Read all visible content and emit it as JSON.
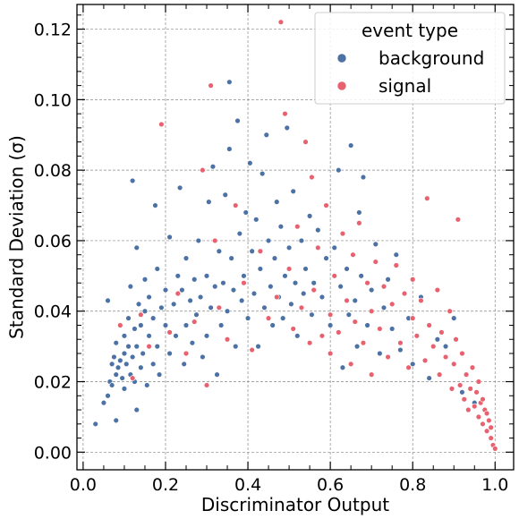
{
  "chart_data": {
    "type": "scatter",
    "xlabel": "Discriminator Output",
    "ylabel": "Standard Deviation (σ)",
    "xlim": [
      -0.015,
      1.045
    ],
    "ylim": [
      -0.005,
      0.127
    ],
    "xticks": [
      0.0,
      0.2,
      0.4,
      0.6,
      0.8,
      1.0
    ],
    "xtick_labels": [
      "0.0",
      "0.2",
      "0.4",
      "0.6",
      "0.8",
      "1.0"
    ],
    "yticks": [
      0.0,
      0.02,
      0.04,
      0.06,
      0.08,
      0.1,
      0.12
    ],
    "ytick_labels": [
      "0.00",
      "0.02",
      "0.04",
      "0.06",
      "0.08",
      "0.10",
      "0.12"
    ],
    "grid": true,
    "legend": {
      "title": "event type",
      "position": "top-right",
      "entries": [
        {
          "name": "background",
          "color": "#4c72a5"
        },
        {
          "name": "signal",
          "color": "#e8616f"
        }
      ]
    },
    "series": [
      {
        "name": "background",
        "color": "#4c72a5",
        "points": [
          [
            0.03,
            0.008
          ],
          [
            0.05,
            0.014
          ],
          [
            0.06,
            0.016
          ],
          [
            0.06,
            0.043
          ],
          [
            0.065,
            0.02
          ],
          [
            0.07,
            0.019
          ],
          [
            0.07,
            0.025
          ],
          [
            0.075,
            0.027
          ],
          [
            0.08,
            0.009
          ],
          [
            0.08,
            0.022
          ],
          [
            0.08,
            0.031
          ],
          [
            0.085,
            0.024
          ],
          [
            0.09,
            0.026
          ],
          [
            0.09,
            0.036
          ],
          [
            0.095,
            0.021
          ],
          [
            0.1,
            0.028
          ],
          [
            0.1,
            0.033
          ],
          [
            0.1,
            0.018
          ],
          [
            0.105,
            0.025
          ],
          [
            0.11,
            0.03
          ],
          [
            0.11,
            0.038
          ],
          [
            0.115,
            0.022
          ],
          [
            0.115,
            0.047
          ],
          [
            0.12,
            0.077
          ],
          [
            0.12,
            0.027
          ],
          [
            0.125,
            0.035
          ],
          [
            0.125,
            0.02
          ],
          [
            0.13,
            0.03
          ],
          [
            0.13,
            0.012
          ],
          [
            0.13,
            0.058
          ],
          [
            0.135,
            0.042
          ],
          [
            0.14,
            0.024
          ],
          [
            0.14,
            0.036
          ],
          [
            0.145,
            0.028
          ],
          [
            0.15,
            0.04
          ],
          [
            0.15,
            0.049
          ],
          [
            0.155,
            0.019
          ],
          [
            0.16,
            0.033
          ],
          [
            0.16,
            0.044
          ],
          [
            0.17,
            0.025
          ],
          [
            0.17,
            0.038
          ],
          [
            0.175,
            0.07
          ],
          [
            0.18,
            0.03
          ],
          [
            0.18,
            0.052
          ],
          [
            0.185,
            0.022
          ],
          [
            0.19,
            0.041
          ],
          [
            0.2,
            0.036
          ],
          [
            0.2,
            0.046
          ],
          [
            0.21,
            0.028
          ],
          [
            0.21,
            0.061
          ],
          [
            0.22,
            0.042
          ],
          [
            0.225,
            0.033
          ],
          [
            0.23,
            0.05
          ],
          [
            0.235,
            0.075
          ],
          [
            0.24,
            0.046
          ],
          [
            0.245,
            0.025
          ],
          [
            0.25,
            0.055
          ],
          [
            0.25,
            0.036
          ],
          [
            0.26,
            0.043
          ],
          [
            0.265,
            0.031
          ],
          [
            0.27,
            0.049
          ],
          [
            0.275,
            0.039
          ],
          [
            0.28,
            0.06
          ],
          [
            0.285,
            0.044
          ],
          [
            0.29,
            0.027
          ],
          [
            0.3,
            0.05
          ],
          [
            0.3,
            0.033
          ],
          [
            0.305,
            0.071
          ],
          [
            0.31,
            0.041
          ],
          [
            0.315,
            0.081
          ],
          [
            0.32,
            0.047
          ],
          [
            0.325,
            0.022
          ],
          [
            0.33,
            0.057
          ],
          [
            0.335,
            0.036
          ],
          [
            0.34,
            0.048
          ],
          [
            0.345,
            0.073
          ],
          [
            0.35,
            0.04
          ],
          [
            0.355,
            0.105
          ],
          [
            0.355,
            0.086
          ],
          [
            0.36,
            0.055
          ],
          [
            0.365,
            0.046
          ],
          [
            0.37,
            0.03
          ],
          [
            0.375,
            0.094
          ],
          [
            0.38,
            0.062
          ],
          [
            0.385,
            0.043
          ],
          [
            0.39,
            0.05
          ],
          [
            0.395,
            0.068
          ],
          [
            0.4,
            0.038
          ],
          [
            0.405,
            0.082
          ],
          [
            0.41,
            0.057
          ],
          [
            0.415,
            0.045
          ],
          [
            0.42,
            0.066
          ],
          [
            0.425,
            0.03
          ],
          [
            0.43,
            0.052
          ],
          [
            0.435,
            0.079
          ],
          [
            0.44,
            0.041
          ],
          [
            0.445,
            0.09
          ],
          [
            0.45,
            0.06
          ],
          [
            0.455,
            0.047
          ],
          [
            0.46,
            0.036
          ],
          [
            0.465,
            0.055
          ],
          [
            0.47,
            0.071
          ],
          [
            0.475,
            0.044
          ],
          [
            0.48,
            0.064
          ],
          [
            0.485,
            0.038
          ],
          [
            0.49,
            0.05
          ],
          [
            0.495,
            0.092
          ],
          [
            0.5,
            0.058
          ],
          [
            0.505,
            0.042
          ],
          [
            0.51,
            0.074
          ],
          [
            0.515,
            0.048
          ],
          [
            0.52,
            0.033
          ],
          [
            0.53,
            0.06
          ],
          [
            0.535,
            0.045
          ],
          [
            0.54,
            0.052
          ],
          [
            0.55,
            0.067
          ],
          [
            0.555,
            0.039
          ],
          [
            0.56,
            0.048
          ],
          [
            0.57,
            0.063
          ],
          [
            0.58,
            0.044
          ],
          [
            0.59,
            0.055
          ],
          [
            0.6,
            0.036
          ],
          [
            0.61,
            0.058
          ],
          [
            0.62,
            0.08
          ],
          [
            0.625,
            0.047
          ],
          [
            0.63,
            0.024
          ],
          [
            0.64,
            0.052
          ],
          [
            0.645,
            0.039
          ],
          [
            0.65,
            0.087
          ],
          [
            0.66,
            0.043
          ],
          [
            0.665,
            0.03
          ],
          [
            0.67,
            0.068
          ],
          [
            0.675,
            0.05
          ],
          [
            0.68,
            0.078
          ],
          [
            0.69,
            0.036
          ],
          [
            0.7,
            0.046
          ],
          [
            0.71,
            0.059
          ],
          [
            0.72,
            0.028
          ],
          [
            0.73,
            0.041
          ],
          [
            0.74,
            0.049
          ],
          [
            0.75,
            0.035
          ],
          [
            0.76,
            0.056
          ],
          [
            0.77,
            0.029
          ],
          [
            0.79,
            0.038
          ],
          [
            0.8,
            0.025
          ],
          [
            0.82,
            0.044
          ],
          [
            0.84,
            0.021
          ],
          [
            0.86,
            0.032
          ],
          [
            0.88,
            0.03
          ],
          [
            0.9,
            0.038
          ],
          [
            0.92,
            0.017
          ],
          [
            0.95,
            0.014
          ]
        ]
      },
      {
        "name": "signal",
        "color": "#e8616f",
        "points": [
          [
            0.09,
            0.036
          ],
          [
            0.12,
            0.021
          ],
          [
            0.14,
            0.039
          ],
          [
            0.16,
            0.03
          ],
          [
            0.19,
            0.093
          ],
          [
            0.21,
            0.034
          ],
          [
            0.23,
            0.045
          ],
          [
            0.25,
            0.028
          ],
          [
            0.27,
            0.037
          ],
          [
            0.29,
            0.08
          ],
          [
            0.3,
            0.019
          ],
          [
            0.31,
            0.104
          ],
          [
            0.32,
            0.06
          ],
          [
            0.33,
            0.041
          ],
          [
            0.35,
            0.032
          ],
          [
            0.37,
            0.07
          ],
          [
            0.39,
            0.048
          ],
          [
            0.41,
            0.029
          ],
          [
            0.43,
            0.057
          ],
          [
            0.45,
            0.038
          ],
          [
            0.47,
            0.044
          ],
          [
            0.48,
            0.122
          ],
          [
            0.49,
            0.096
          ],
          [
            0.5,
            0.052
          ],
          [
            0.51,
            0.035
          ],
          [
            0.52,
            0.064
          ],
          [
            0.53,
            0.041
          ],
          [
            0.54,
            0.088
          ],
          [
            0.55,
            0.031
          ],
          [
            0.555,
            0.078
          ],
          [
            0.56,
            0.046
          ],
          [
            0.57,
            0.058
          ],
          [
            0.58,
            0.033
          ],
          [
            0.59,
            0.07
          ],
          [
            0.6,
            0.039
          ],
          [
            0.6,
            0.028
          ],
          [
            0.61,
            0.05
          ],
          [
            0.62,
            0.034
          ],
          [
            0.63,
            0.062
          ],
          [
            0.64,
            0.043
          ],
          [
            0.65,
            0.025
          ],
          [
            0.655,
            0.056
          ],
          [
            0.66,
            0.037
          ],
          [
            0.67,
            0.065
          ],
          [
            0.68,
            0.031
          ],
          [
            0.69,
            0.048
          ],
          [
            0.7,
            0.04
          ],
          [
            0.7,
            0.022
          ],
          [
            0.71,
            0.054
          ],
          [
            0.72,
            0.035
          ],
          [
            0.73,
            0.047
          ],
          [
            0.74,
            0.027
          ],
          [
            0.75,
            0.042
          ],
          [
            0.76,
            0.053
          ],
          [
            0.77,
            0.031
          ],
          [
            0.78,
            0.045
          ],
          [
            0.79,
            0.024
          ],
          [
            0.8,
            0.038
          ],
          [
            0.8,
            0.049
          ],
          [
            0.81,
            0.033
          ],
          [
            0.82,
            0.043
          ],
          [
            0.83,
            0.026
          ],
          [
            0.835,
            0.072
          ],
          [
            0.84,
            0.036
          ],
          [
            0.85,
            0.03
          ],
          [
            0.86,
            0.046
          ],
          [
            0.865,
            0.022
          ],
          [
            0.87,
            0.034
          ],
          [
            0.88,
            0.027
          ],
          [
            0.89,
            0.04
          ],
          [
            0.895,
            0.018
          ],
          [
            0.9,
            0.025
          ],
          [
            0.905,
            0.032
          ],
          [
            0.91,
            0.066
          ],
          [
            0.915,
            0.019
          ],
          [
            0.92,
            0.028
          ],
          [
            0.925,
            0.015
          ],
          [
            0.93,
            0.022
          ],
          [
            0.935,
            0.012
          ],
          [
            0.94,
            0.018
          ],
          [
            0.945,
            0.024
          ],
          [
            0.95,
            0.013
          ],
          [
            0.955,
            0.017
          ],
          [
            0.96,
            0.01
          ],
          [
            0.965,
            0.014
          ],
          [
            0.97,
            0.008
          ],
          [
            0.975,
            0.012
          ],
          [
            0.98,
            0.006
          ],
          [
            0.985,
            0.009
          ],
          [
            0.99,
            0.004
          ],
          [
            0.995,
            0.002
          ],
          [
            1.0,
            0.001
          ],
          [
            0.96,
            0.02
          ],
          [
            0.97,
            0.015
          ],
          [
            0.98,
            0.011
          ],
          [
            0.99,
            0.007
          ]
        ]
      }
    ]
  }
}
